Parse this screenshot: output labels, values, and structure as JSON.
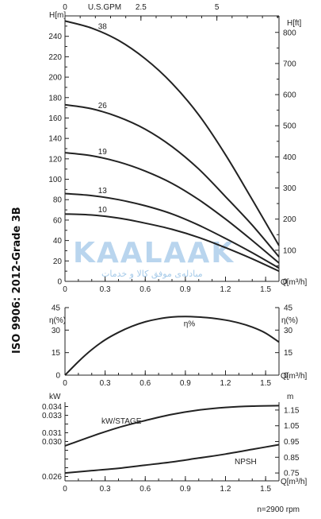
{
  "side_title": "ISO 9906: 2012-Grade 3B",
  "footer": "n=2900 rpm",
  "watermark": {
    "brand": "KAALAAK",
    "subtitle": "مبادله‌ی موفق کالا و خدمات"
  },
  "chart_data": [
    {
      "id": "head",
      "type": "line",
      "ylabel_left": "H[m]",
      "ylabel_right": "H[ft]",
      "xlabel_top": "U.S.GPM",
      "xlabel": "Q[m³/h]",
      "xlim": [
        0,
        1.6
      ],
      "ylim": [
        0,
        260
      ],
      "ylim_right": [
        0,
        853
      ],
      "xticks": [
        "0",
        "0.3",
        "0.6",
        "0.9",
        "1.2",
        "1.5"
      ],
      "xticks_top": [
        "0",
        "2.5",
        "5"
      ],
      "yticks_left": [
        "0",
        "20",
        "40",
        "60",
        "80",
        "100",
        "120",
        "140",
        "160",
        "180",
        "200",
        "220",
        "240"
      ],
      "yticks_right": [
        "0",
        "100",
        "200",
        "300",
        "400",
        "500",
        "600",
        "700",
        "800"
      ],
      "series": [
        {
          "name": "38",
          "x": [
            0,
            0.2,
            0.4,
            0.6,
            0.8,
            1.0,
            1.2,
            1.4,
            1.6
          ],
          "y": [
            255,
            248,
            236,
            218,
            194,
            163,
            124,
            80,
            35
          ]
        },
        {
          "name": "26",
          "x": [
            0,
            0.2,
            0.4,
            0.6,
            0.8,
            1.0,
            1.2,
            1.4,
            1.6
          ],
          "y": [
            173,
            169,
            161,
            149,
            132,
            110,
            83,
            55,
            24
          ]
        },
        {
          "name": "19",
          "x": [
            0,
            0.2,
            0.4,
            0.6,
            0.8,
            1.0,
            1.2,
            1.4,
            1.6
          ],
          "y": [
            126,
            123,
            117,
            108,
            96,
            80,
            61,
            40,
            18
          ]
        },
        {
          "name": "13",
          "x": [
            0,
            0.2,
            0.4,
            0.6,
            0.8,
            1.0,
            1.2,
            1.4,
            1.6
          ],
          "y": [
            86,
            84,
            80,
            74,
            66,
            55,
            42,
            28,
            13
          ]
        },
        {
          "name": "10",
          "x": [
            0,
            0.2,
            0.4,
            0.6,
            0.8,
            1.0,
            1.2,
            1.4,
            1.6
          ],
          "y": [
            66,
            65,
            62,
            57,
            51,
            43,
            33,
            22,
            10
          ]
        }
      ]
    },
    {
      "id": "efficiency",
      "type": "line",
      "ylabel_left": "η(%)",
      "ylabel_right": "η(%)",
      "xlabel": "Q[m³/h]",
      "xlim": [
        0,
        1.6
      ],
      "ylim": [
        0,
        45
      ],
      "xticks": [
        "0",
        "0.3",
        "0.6",
        "0.9",
        "1.2",
        "1.5"
      ],
      "yticks_left": [
        "0",
        "15",
        "30",
        "45"
      ],
      "yticks_right": [
        "0",
        "15",
        "30",
        "45"
      ],
      "series": [
        {
          "name": "η%",
          "x": [
            0,
            0.1,
            0.2,
            0.3,
            0.4,
            0.5,
            0.6,
            0.7,
            0.8,
            0.9,
            1.0,
            1.1,
            1.2,
            1.3,
            1.4,
            1.5,
            1.6
          ],
          "y": [
            0,
            9,
            17,
            23.5,
            28.5,
            32.5,
            35.5,
            37.5,
            38.7,
            39,
            38.7,
            38,
            36.7,
            34.8,
            32,
            28,
            22
          ]
        }
      ]
    },
    {
      "id": "power_npsh",
      "type": "line",
      "ylabel_left": "kW",
      "ylabel_right": "m",
      "xlabel": "Q[m³/h]",
      "xlim": [
        0,
        1.6
      ],
      "ylim": [
        0.0255,
        0.0345
      ],
      "ylim_right": [
        0.7,
        1.2
      ],
      "xticks": [
        "0",
        "0.3",
        "0.6",
        "0.9",
        "1.2",
        "1.5"
      ],
      "yticks_left": [
        "0.026",
        "0.027",
        "0.028",
        "0.029",
        "0.030",
        "0.031",
        "0.032",
        "0.033",
        "0.034"
      ],
      "yticks_left_labeled": [
        "0.026",
        "0.030",
        "0.031",
        "0.033",
        "0.034"
      ],
      "yticks_right": [
        "0.75",
        "0.85",
        "0.95",
        "1.05",
        "1.15"
      ],
      "series": [
        {
          "name": "kW/STAGE",
          "axis": "left",
          "x": [
            0,
            0.2,
            0.4,
            0.6,
            0.8,
            1.0,
            1.2,
            1.4,
            1.6
          ],
          "y": [
            0.0295,
            0.0306,
            0.0316,
            0.0324,
            0.0331,
            0.0336,
            0.0339,
            0.03405,
            0.0341
          ]
        },
        {
          "name": "NPSH",
          "axis": "right",
          "x": [
            0,
            0.2,
            0.4,
            0.6,
            0.8,
            1.0,
            1.2,
            1.4,
            1.6
          ],
          "y": [
            0.75,
            0.765,
            0.78,
            0.8,
            0.82,
            0.845,
            0.87,
            0.9,
            0.93
          ]
        }
      ]
    }
  ]
}
